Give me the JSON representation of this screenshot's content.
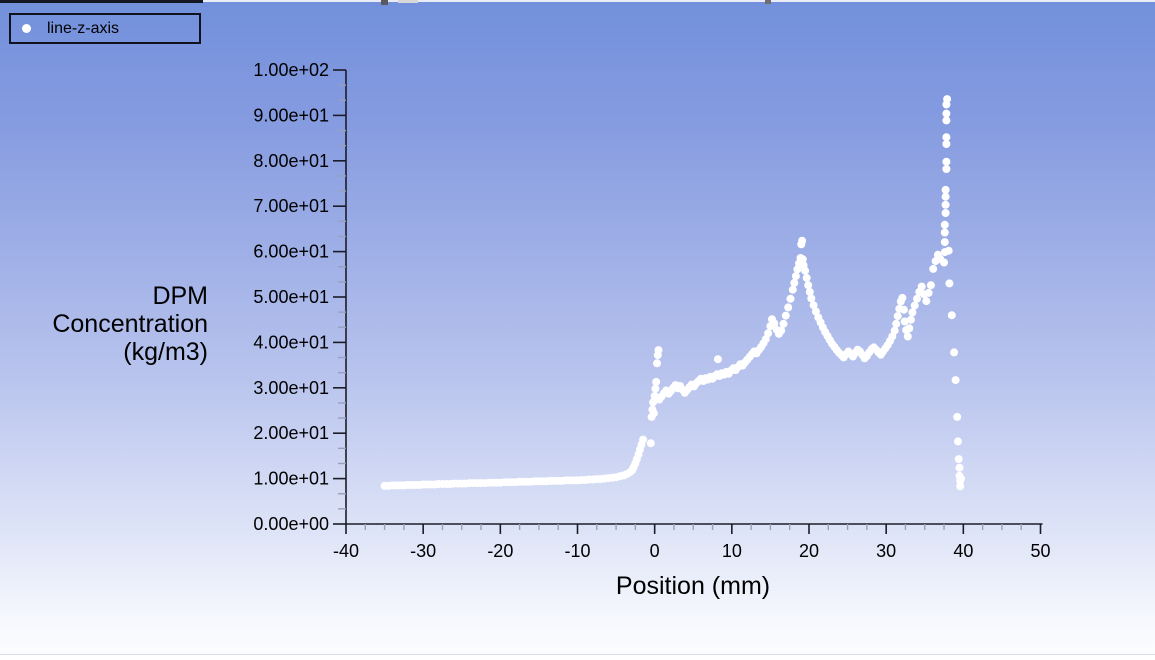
{
  "window": {
    "app": "fluent-xy-plot-graphics-window",
    "colors": {
      "background_top": "#7290dc",
      "background_bottom": "#fdfdff",
      "marker": "#ffffff",
      "axis": "#1c1c28",
      "minor_tick": "#97a0bd",
      "text": "#000000",
      "legend_border": "#10131d"
    }
  },
  "legend": {
    "label": "line-z-axis",
    "marker": "circle",
    "marker_color": "#ffffff"
  },
  "y_axis": {
    "title_text": "DPM\nConcentration\n(kg/m3)",
    "ticks": [
      "0.00e+00",
      "1.00e+01",
      "2.00e+01",
      "3.00e+01",
      "4.00e+01",
      "5.00e+01",
      "6.00e+01",
      "7.00e+01",
      "8.00e+01",
      "9.00e+01",
      "1.00e+02"
    ]
  },
  "x_axis": {
    "title": "Position (mm)",
    "ticks": [
      "-40",
      "-30",
      "-20",
      "-10",
      "0",
      "10",
      "20",
      "30",
      "40",
      "50"
    ]
  },
  "chart_data": {
    "type": "scatter",
    "title": "",
    "xlabel": "Position (mm)",
    "ylabel": "DPM Concentration (kg/m3)",
    "xlim": [
      -40,
      50
    ],
    "ylim": [
      0,
      100
    ],
    "x_major_step": 10,
    "x_minor_divisions": 4,
    "y_major_step": 10,
    "y_minor_divisions": 3,
    "grid": false,
    "legend_position": "top-left",
    "series": [
      {
        "name": "line-z-axis",
        "marker": "circle",
        "color": "#ffffff",
        "points": [
          [
            -35,
            8.4
          ],
          [
            -34.5,
            8.4
          ],
          [
            -34,
            8.5
          ],
          [
            -33.5,
            8.5
          ],
          [
            -33,
            8.5
          ],
          [
            -32.5,
            8.5
          ],
          [
            -32,
            8.6
          ],
          [
            -31.5,
            8.6
          ],
          [
            -31,
            8.6
          ],
          [
            -30.5,
            8.6
          ],
          [
            -30,
            8.7
          ],
          [
            -29.5,
            8.7
          ],
          [
            -29,
            8.7
          ],
          [
            -28.5,
            8.7
          ],
          [
            -28,
            8.8
          ],
          [
            -27.5,
            8.8
          ],
          [
            -27,
            8.8
          ],
          [
            -26.5,
            8.8
          ],
          [
            -26,
            8.9
          ],
          [
            -25.5,
            8.9
          ],
          [
            -25,
            8.9
          ],
          [
            -24.5,
            8.9
          ],
          [
            -24,
            9.0
          ],
          [
            -23.5,
            9.0
          ],
          [
            -23,
            9.0
          ],
          [
            -22.5,
            9.0
          ],
          [
            -22,
            9.0
          ],
          [
            -21.5,
            9.1
          ],
          [
            -21,
            9.1
          ],
          [
            -20.5,
            9.1
          ],
          [
            -20,
            9.1
          ],
          [
            -19.5,
            9.2
          ],
          [
            -19,
            9.2
          ],
          [
            -18.5,
            9.2
          ],
          [
            -18,
            9.2
          ],
          [
            -17.5,
            9.3
          ],
          [
            -17,
            9.3
          ],
          [
            -16.5,
            9.3
          ],
          [
            -16,
            9.3
          ],
          [
            -15.5,
            9.4
          ],
          [
            -15,
            9.4
          ],
          [
            -14.5,
            9.4
          ],
          [
            -14,
            9.4
          ],
          [
            -13.5,
            9.5
          ],
          [
            -13,
            9.5
          ],
          [
            -12.5,
            9.5
          ],
          [
            -12,
            9.5
          ],
          [
            -11.5,
            9.6
          ],
          [
            -11,
            9.6
          ],
          [
            -10.5,
            9.6
          ],
          [
            -10,
            9.6
          ],
          [
            -9.5,
            9.7
          ],
          [
            -9,
            9.7
          ],
          [
            -8.5,
            9.8
          ],
          [
            -8,
            9.8
          ],
          [
            -7.5,
            9.9
          ],
          [
            -7,
            9.9
          ],
          [
            -6.5,
            10.0
          ],
          [
            -6,
            10.1
          ],
          [
            -5.5,
            10.2
          ],
          [
            -5,
            10.3
          ],
          [
            -4.5,
            10.5
          ],
          [
            -4,
            10.7
          ],
          [
            -3.6,
            11.0
          ],
          [
            -3.2,
            11.4
          ],
          [
            -2.9,
            11.9
          ],
          [
            -2.7,
            12.6
          ],
          [
            -2.5,
            13.4
          ],
          [
            -2.3,
            14.3
          ],
          [
            -2.1,
            15.3
          ],
          [
            -1.9,
            16.4
          ],
          [
            -1.7,
            17.5
          ],
          [
            -1.5,
            18.6
          ],
          [
            -0.5,
            17.8
          ],
          [
            -0.4,
            23.6
          ],
          [
            -0.3,
            25.2
          ],
          [
            -0.2,
            26.8
          ],
          [
            -0.1,
            24.4
          ],
          [
            0,
            28.2
          ],
          [
            0.1,
            29.8
          ],
          [
            0.2,
            31.3
          ],
          [
            0.3,
            35.4
          ],
          [
            0.4,
            37.2
          ],
          [
            0.5,
            38.3
          ],
          [
            0.6,
            27.4
          ],
          [
            0.9,
            28.1
          ],
          [
            1.2,
            28.8
          ],
          [
            1.5,
            29.4
          ],
          [
            1.8,
            28.7
          ],
          [
            2.1,
            29.3
          ],
          [
            2.4,
            30.0
          ],
          [
            2.7,
            30.6
          ],
          [
            3.0,
            29.9
          ],
          [
            3.3,
            30.4
          ],
          [
            3.6,
            29.6
          ],
          [
            3.9,
            28.9
          ],
          [
            4.2,
            29.5
          ],
          [
            4.5,
            30.1
          ],
          [
            4.8,
            30.7
          ],
          [
            5.1,
            30.3
          ],
          [
            5.4,
            31.0
          ],
          [
            5.7,
            31.5
          ],
          [
            6.0,
            32.0
          ],
          [
            6.3,
            31.5
          ],
          [
            6.6,
            32.1
          ],
          [
            6.9,
            31.8
          ],
          [
            7.2,
            32.4
          ],
          [
            7.5,
            32.0
          ],
          [
            7.8,
            32.6
          ],
          [
            8.1,
            33.0
          ],
          [
            8.2,
            36.3
          ],
          [
            8.4,
            32.6
          ],
          [
            8.7,
            33.2
          ],
          [
            9.0,
            32.9
          ],
          [
            9.3,
            33.5
          ],
          [
            9.6,
            33.1
          ],
          [
            9.9,
            33.8
          ],
          [
            10.2,
            34.3
          ],
          [
            10.5,
            33.9
          ],
          [
            10.8,
            34.6
          ],
          [
            11.1,
            35.2
          ],
          [
            11.4,
            34.9
          ],
          [
            11.7,
            35.6
          ],
          [
            12.0,
            36.2
          ],
          [
            12.3,
            36.8
          ],
          [
            12.6,
            37.4
          ],
          [
            12.9,
            38.0
          ],
          [
            13.2,
            37.6
          ],
          [
            13.5,
            38.3
          ],
          [
            13.8,
            39.0
          ],
          [
            14.1,
            39.8
          ],
          [
            14.4,
            40.7
          ],
          [
            14.7,
            42.0
          ],
          [
            15.0,
            43.6
          ],
          [
            15.2,
            45.1
          ],
          [
            15.5,
            44.2
          ],
          [
            15.8,
            42.8
          ],
          [
            16.1,
            41.9
          ],
          [
            16.4,
            42.6
          ],
          [
            16.7,
            44.1
          ],
          [
            17.0,
            45.9
          ],
          [
            17.3,
            47.7
          ],
          [
            17.6,
            49.6
          ],
          [
            17.9,
            51.6
          ],
          [
            18.1,
            53.1
          ],
          [
            18.3,
            54.6
          ],
          [
            18.5,
            56.1
          ],
          [
            18.7,
            57.4
          ],
          [
            18.9,
            58.6
          ],
          [
            19.0,
            61.6
          ],
          [
            19.1,
            62.4
          ],
          [
            19.2,
            58.3
          ],
          [
            19.3,
            57.0
          ],
          [
            19.5,
            55.8
          ],
          [
            19.7,
            54.2
          ],
          [
            19.9,
            52.6
          ],
          [
            20.1,
            51.1
          ],
          [
            20.3,
            49.7
          ],
          [
            20.6,
            48.2
          ],
          [
            20.9,
            46.8
          ],
          [
            21.2,
            45.5
          ],
          [
            21.5,
            44.4
          ],
          [
            21.8,
            43.3
          ],
          [
            22.1,
            42.3
          ],
          [
            22.4,
            41.4
          ],
          [
            22.7,
            40.5
          ],
          [
            23.0,
            39.7
          ],
          [
            23.3,
            39.0
          ],
          [
            23.6,
            38.3
          ],
          [
            23.9,
            37.7
          ],
          [
            24.2,
            37.2
          ],
          [
            24.5,
            36.7
          ],
          [
            24.8,
            37.4
          ],
          [
            25.1,
            38.0
          ],
          [
            25.4,
            37.4
          ],
          [
            25.7,
            36.9
          ],
          [
            26.0,
            37.7
          ],
          [
            26.3,
            38.4
          ],
          [
            26.6,
            38.0
          ],
          [
            26.9,
            37.3
          ],
          [
            27.2,
            36.5
          ],
          [
            27.5,
            37.0
          ],
          [
            27.8,
            37.8
          ],
          [
            28.1,
            38.5
          ],
          [
            28.4,
            38.9
          ],
          [
            28.7,
            38.4
          ],
          [
            29.0,
            37.8
          ],
          [
            29.3,
            37.3
          ],
          [
            29.6,
            38.0
          ],
          [
            29.9,
            38.7
          ],
          [
            30.2,
            39.4
          ],
          [
            30.5,
            40.3
          ],
          [
            30.8,
            41.3
          ],
          [
            31.1,
            42.6
          ],
          [
            31.3,
            44.1
          ],
          [
            31.5,
            45.8
          ],
          [
            31.7,
            47.4
          ],
          [
            31.9,
            49.0
          ],
          [
            32.1,
            49.8
          ],
          [
            32.3,
            47.2
          ],
          [
            32.4,
            44.6
          ],
          [
            32.6,
            42.7
          ],
          [
            32.8,
            41.3
          ],
          [
            33.0,
            43.1
          ],
          [
            33.2,
            45.0
          ],
          [
            33.4,
            46.6
          ],
          [
            33.7,
            48.1
          ],
          [
            34.0,
            49.6
          ],
          [
            34.3,
            51.1
          ],
          [
            34.6,
            52.3
          ],
          [
            34.9,
            50.6
          ],
          [
            35.2,
            49.1
          ],
          [
            35.5,
            50.9
          ],
          [
            35.8,
            52.6
          ],
          [
            36.1,
            56.2
          ],
          [
            36.4,
            57.9
          ],
          [
            36.7,
            59.3
          ],
          [
            37.0,
            58.4
          ],
          [
            37.5,
            57.6
          ],
          [
            37.6,
            59.9
          ],
          [
            37.6,
            62.1
          ],
          [
            37.6,
            64.2
          ],
          [
            37.6,
            65.9
          ],
          [
            37.7,
            68.5
          ],
          [
            37.7,
            70.3
          ],
          [
            37.7,
            72.1
          ],
          [
            37.7,
            73.6
          ],
          [
            37.8,
            78.2
          ],
          [
            37.8,
            79.8
          ],
          [
            37.8,
            83.7
          ],
          [
            37.8,
            85.2
          ],
          [
            37.8,
            88.9
          ],
          [
            37.8,
            90.4
          ],
          [
            37.8,
            92.4
          ],
          [
            37.9,
            93.6
          ],
          [
            38.1,
            60.2
          ],
          [
            38.2,
            53.0
          ],
          [
            38.5,
            46.0
          ],
          [
            38.8,
            37.8
          ],
          [
            39.0,
            31.7
          ],
          [
            39.2,
            23.6
          ],
          [
            39.3,
            18.2
          ],
          [
            39.4,
            14.3
          ],
          [
            39.5,
            12.4
          ],
          [
            39.5,
            10.6
          ],
          [
            39.6,
            9.5
          ],
          [
            39.6,
            8.3
          ],
          [
            39.7,
            10.0
          ]
        ]
      }
    ]
  }
}
